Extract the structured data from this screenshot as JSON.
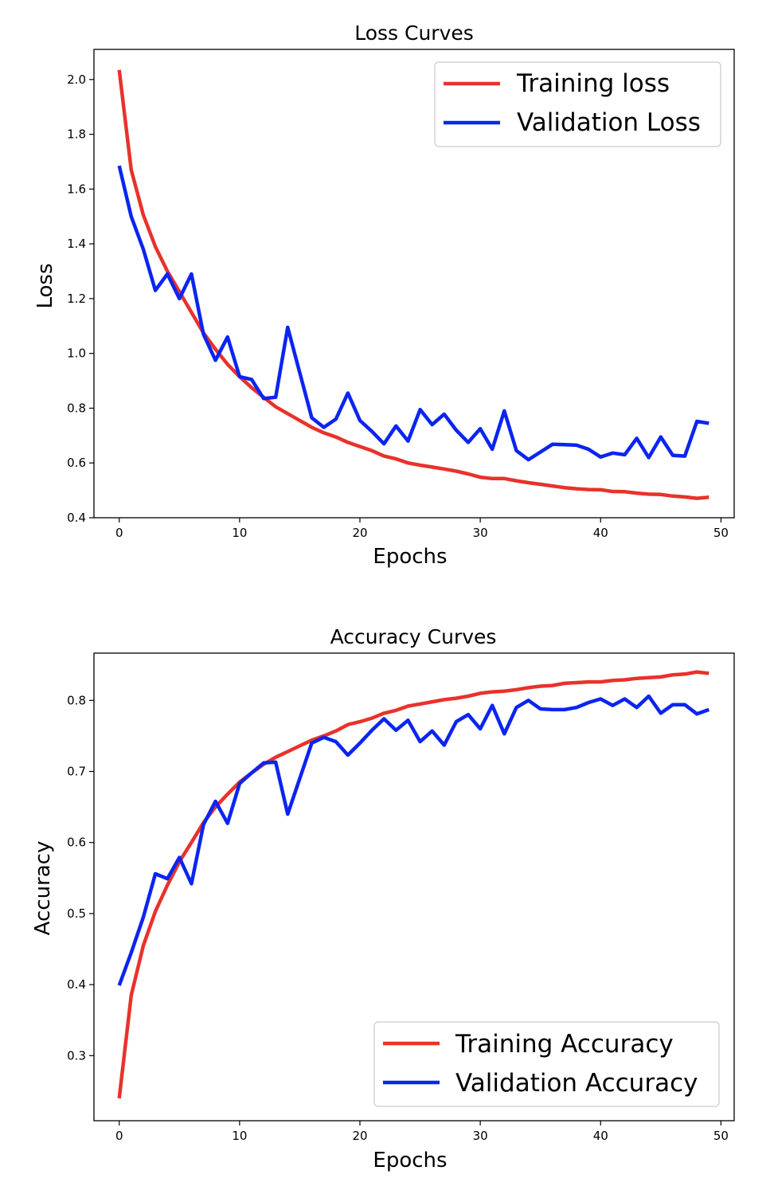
{
  "chart_data": [
    {
      "type": "line",
      "title": "Loss Curves",
      "xlabel": "Epochs",
      "ylabel": "Loss",
      "xlim": [
        -2.1,
        51.1
      ],
      "ylim": [
        0.4,
        2.11
      ],
      "x_ticks": [
        0,
        10,
        20,
        30,
        40,
        50
      ],
      "y_ticks": [
        0.4,
        0.6,
        0.8,
        1.0,
        1.2,
        1.4,
        1.6,
        1.8,
        2.0
      ],
      "y_tick_labels": [
        "0.4",
        "0.6",
        "0.8",
        "1.0",
        "1.2",
        "1.4",
        "1.6",
        "1.8",
        "2.0"
      ],
      "x_tick_labels": [
        "0",
        "10",
        "20",
        "30",
        "40",
        "50"
      ],
      "grid": false,
      "legend_position": "top-right",
      "series": [
        {
          "name": "Training loss",
          "color": "#e8322b",
          "values": [
            2.035,
            1.67,
            1.505,
            1.39,
            1.3,
            1.225,
            1.15,
            1.075,
            1.015,
            0.96,
            0.915,
            0.875,
            0.84,
            0.805,
            0.78,
            0.755,
            0.73,
            0.71,
            0.695,
            0.675,
            0.66,
            0.645,
            0.625,
            0.615,
            0.6,
            0.592,
            0.585,
            0.578,
            0.57,
            0.56,
            0.548,
            0.543,
            0.543,
            0.535,
            0.528,
            0.522,
            0.516,
            0.51,
            0.506,
            0.503,
            0.502,
            0.496,
            0.495,
            0.49,
            0.486,
            0.485,
            0.479,
            0.476,
            0.471,
            0.475
          ]
        },
        {
          "name": "Validation Loss",
          "color": "#0a25f0",
          "values": [
            1.685,
            1.5,
            1.38,
            1.23,
            1.29,
            1.2,
            1.29,
            1.07,
            0.975,
            1.06,
            0.915,
            0.905,
            0.835,
            0.84,
            1.095,
            0.93,
            0.765,
            0.73,
            0.76,
            0.855,
            0.755,
            0.715,
            0.67,
            0.735,
            0.68,
            0.795,
            0.74,
            0.778,
            0.72,
            0.675,
            0.725,
            0.65,
            0.79,
            0.645,
            0.612,
            0.64,
            0.668,
            0.667,
            0.665,
            0.65,
            0.622,
            0.636,
            0.63,
            0.69,
            0.62,
            0.695,
            0.628,
            0.625,
            0.752,
            0.745
          ]
        }
      ]
    },
    {
      "type": "line",
      "title": "Accuracy Curves",
      "xlabel": "Epochs",
      "ylabel": "Accuracy",
      "xlim": [
        -2.1,
        51.1
      ],
      "ylim": [
        0.2085,
        0.8665
      ],
      "x_ticks": [
        0,
        10,
        20,
        30,
        40,
        50
      ],
      "y_ticks": [
        0.3,
        0.4,
        0.5,
        0.6,
        0.7,
        0.8
      ],
      "y_tick_labels": [
        "0.3",
        "0.4",
        "0.5",
        "0.6",
        "0.7",
        "0.8"
      ],
      "x_tick_labels": [
        "0",
        "10",
        "20",
        "30",
        "40",
        "50"
      ],
      "grid": false,
      "legend_position": "bottom-right",
      "series": [
        {
          "name": "Training Accuracy",
          "color": "#e8322b",
          "values": [
            0.24,
            0.385,
            0.455,
            0.503,
            0.54,
            0.573,
            0.6,
            0.628,
            0.65,
            0.668,
            0.685,
            0.698,
            0.71,
            0.72,
            0.728,
            0.736,
            0.744,
            0.75,
            0.757,
            0.766,
            0.77,
            0.775,
            0.782,
            0.786,
            0.792,
            0.795,
            0.798,
            0.801,
            0.803,
            0.806,
            0.81,
            0.812,
            0.813,
            0.815,
            0.818,
            0.82,
            0.821,
            0.824,
            0.825,
            0.826,
            0.826,
            0.828,
            0.829,
            0.831,
            0.832,
            0.833,
            0.836,
            0.837,
            0.84,
            0.838
          ]
        },
        {
          "name": "Validation Accuracy",
          "color": "#0a25f0",
          "values": [
            0.399,
            0.445,
            0.495,
            0.556,
            0.549,
            0.579,
            0.542,
            0.625,
            0.658,
            0.627,
            0.683,
            0.698,
            0.712,
            0.713,
            0.64,
            0.69,
            0.74,
            0.748,
            0.742,
            0.723,
            0.74,
            0.758,
            0.774,
            0.758,
            0.772,
            0.742,
            0.757,
            0.737,
            0.77,
            0.78,
            0.76,
            0.793,
            0.753,
            0.79,
            0.8,
            0.788,
            0.787,
            0.787,
            0.79,
            0.797,
            0.802,
            0.793,
            0.802,
            0.79,
            0.806,
            0.782,
            0.794,
            0.794,
            0.781,
            0.787
          ]
        }
      ]
    }
  ]
}
